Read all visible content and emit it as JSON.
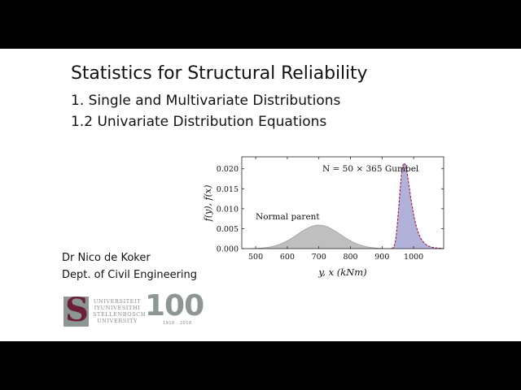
{
  "slide": {
    "title": "Statistics for Structural Reliability",
    "subtitle1": "1. Single and Multivariate Distributions",
    "subtitle2": "1.2 Univariate Distribution Equations",
    "author": "Dr Nico de Koker",
    "department": "Dept. of Civil Engineering",
    "logo": {
      "icon": "stellenbosch-s-icon",
      "lines": [
        "UNIVERSITEIT",
        "IYUNIVESITHI",
        "STELLENBOSCH",
        "UNIVERSITY"
      ],
      "centenary": "100",
      "years": "1918 · 2018"
    }
  },
  "chart_data": {
    "type": "area",
    "title": "",
    "xlabel": "y, x (kNm)",
    "ylabel": "f(y), f(x)",
    "xlim": [
      456,
      1095
    ],
    "ylim": [
      0,
      0.023
    ],
    "xticks": [
      500,
      600,
      700,
      800,
      900,
      1000
    ],
    "yticks": [
      "0.000",
      "0.005",
      "0.010",
      "0.015",
      "0.020"
    ],
    "grid": false,
    "annotations": [
      {
        "text": "N = 50 × 365 Gumbel",
        "x": 830,
        "y": 0.0205
      },
      {
        "text": "Normal parent",
        "x": 495,
        "y": 0.0083
      }
    ],
    "series": [
      {
        "name": "Normal parent",
        "distribution": "normal",
        "mean": 700,
        "std": 67.6,
        "peak": 0.0059,
        "fill": "#b8b8b8",
        "edge": "#8c8c8c"
      },
      {
        "name": "N = 50 × 365 Gumbel",
        "distribution": "gumbel_max",
        "mode": 970,
        "scale": 17.2,
        "peak": 0.0214,
        "fill": "#a9a9d6",
        "edge": "#9b1c4a"
      }
    ]
  }
}
